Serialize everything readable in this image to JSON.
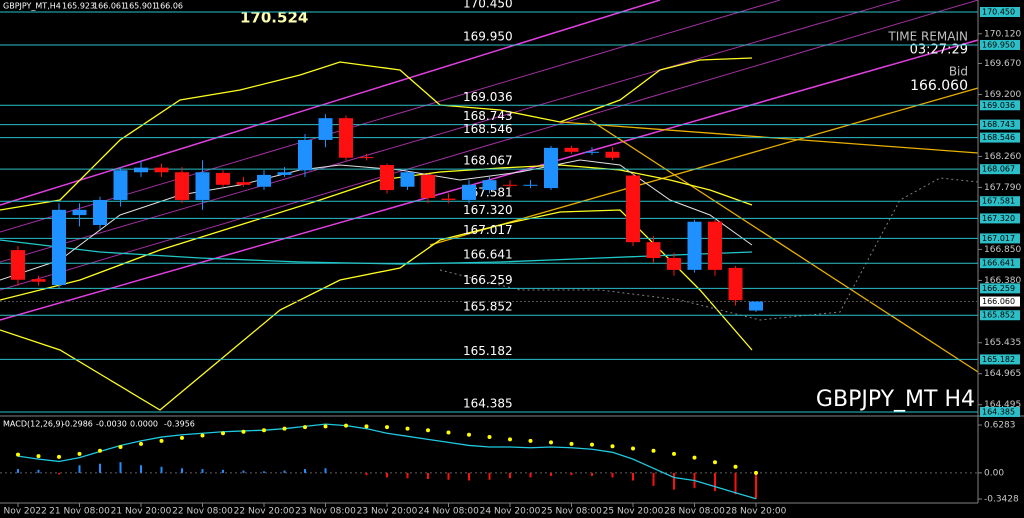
{
  "chart_data": {
    "type": "candlestick",
    "title": "GBPJPY_MT,H4",
    "categories": [
      "18 Nov 2022",
      null,
      null,
      "21 Nov 08:00",
      null,
      null,
      "21 Nov 20:00",
      null,
      null,
      "22 Nov 08:00",
      null,
      null,
      "22 Nov 20:00",
      null,
      null,
      "23 Nov 08:00",
      null,
      null,
      "23 Nov 20:00",
      null,
      null,
      "24 Nov 08:00",
      null,
      null,
      "24 Nov 20:00",
      null,
      null,
      "25 Nov 08:00",
      null,
      null,
      "25 Nov 20:00",
      null,
      null,
      "28 Nov 08:00",
      null,
      null,
      "28 Nov 20:00"
    ],
    "open": [
      166.84,
      166.4,
      166.31,
      167.37,
      167.22,
      167.6,
      168.02,
      168.09,
      168.02,
      167.6,
      168.01,
      167.87,
      167.8,
      167.98,
      168.05,
      168.51,
      168.84,
      168.25,
      168.13,
      167.8,
      167.98,
      167.62,
      167.6,
      167.75,
      167.83,
      167.82,
      167.78,
      168.39,
      168.32,
      168.33,
      167.97,
      166.96,
      166.72,
      166.54,
      167.27,
      166.57,
      165.923
    ],
    "high": [
      166.9,
      166.45,
      167.55,
      167.55,
      167.65,
      168.1,
      168.2,
      168.15,
      168.1,
      168.2,
      168.05,
      167.95,
      168.05,
      168.1,
      168.6,
      168.9,
      168.88,
      168.3,
      168.15,
      168.05,
      168.0,
      167.7,
      167.9,
      167.95,
      167.9,
      167.9,
      168.42,
      168.42,
      168.4,
      168.4,
      168.0,
      167.05,
      166.8,
      167.3,
      167.3,
      166.6,
      166.061
    ],
    "low": [
      166.3,
      166.3,
      166.25,
      167.2,
      167.15,
      167.5,
      167.95,
      167.95,
      167.55,
      167.45,
      167.8,
      167.8,
      167.75,
      167.95,
      167.95,
      168.4,
      168.2,
      168.2,
      167.7,
      167.75,
      167.55,
      167.55,
      167.55,
      167.7,
      167.78,
      167.78,
      167.75,
      168.3,
      168.28,
      168.2,
      166.9,
      166.65,
      166.45,
      166.5,
      166.45,
      166.0,
      165.901
    ],
    "close": [
      166.39,
      166.36,
      167.45,
      167.45,
      167.6,
      168.05,
      168.09,
      168.02,
      167.6,
      168.02,
      167.83,
      167.83,
      167.98,
      168.02,
      168.51,
      168.84,
      168.24,
      168.24,
      167.75,
      168.02,
      167.63,
      167.6,
      167.83,
      167.9,
      167.82,
      167.83,
      168.39,
      168.33,
      168.33,
      168.24,
      166.96,
      166.72,
      166.54,
      167.27,
      166.54,
      166.08,
      166.06
    ],
    "up_color": "#1e90ff",
    "down_color": "#ff1010",
    "ylim": [
      164.324,
      170.632
    ],
    "yticks": [
      {
        "value": 170.12,
        "label": "170.120"
      },
      {
        "value": 169.67,
        "label": "169.670"
      },
      {
        "value": 169.2,
        "label": "169.200"
      },
      {
        "value": 168.26,
        "label": "168.260"
      },
      {
        "value": 167.79,
        "label": "167.790"
      },
      {
        "value": 166.85,
        "label": "166.850"
      },
      {
        "value": 166.38,
        "label": "166.380"
      },
      165.435,
      164.965,
      164.495
    ],
    "levels": [
      {
        "value": 170.45,
        "label": "170.450"
      },
      {
        "value": 169.95,
        "label": "169.950"
      },
      169.036,
      168.743,
      168.546,
      168.067,
      167.581,
      {
        "value": 167.32,
        "label": "167.320"
      },
      167.017,
      166.641,
      166.259,
      165.852,
      165.182,
      164.385
    ],
    "level_color": "#2bbfc8",
    "bid": {
      "value": 166.06,
      "label": "166.060"
    },
    "high_mark": 170.524,
    "time_remain_label": "TIME REMAIN",
    "time_remain": "03:27:29",
    "bid_label": "Bid",
    "watermark": "GBPJPY_MT H4",
    "macd": {
      "label": "MACD(12,26,9)",
      "readout": [
        -0.2986,
        {
          "value": -0.003,
          "label": "-0.0030"
        },
        {
          "value": 0,
          "label": "0.0000"
        },
        -0.3956
      ],
      "ylim": [
        -0.395,
        0.72
      ],
      "yticks": [
        0.6283,
        {
          "value": 0,
          "label": "0.00"
        },
        -0.3428
      ],
      "histogram": [
        0.05,
        0.04,
        -0.02,
        0.1,
        0.12,
        0.14,
        0.1,
        0.08,
        0.06,
        0.05,
        0.04,
        0.03,
        0.02,
        0.03,
        0.05,
        0.06,
        0.0,
        -0.03,
        -0.06,
        -0.07,
        -0.08,
        -0.09,
        -0.1,
        -0.09,
        -0.07,
        -0.06,
        -0.04,
        -0.03,
        -0.04,
        -0.06,
        -0.1,
        -0.17,
        -0.22,
        -0.2,
        -0.24,
        -0.28,
        -0.34
      ],
      "signal": [
        0.24,
        0.22,
        0.21,
        0.25,
        0.29,
        0.34,
        0.38,
        0.42,
        0.46,
        0.49,
        0.52,
        0.54,
        0.56,
        0.58,
        0.6,
        0.61,
        0.62,
        0.61,
        0.6,
        0.58,
        0.56,
        0.53,
        0.5,
        0.47,
        0.44,
        0.42,
        0.4,
        0.38,
        0.37,
        0.35,
        0.32,
        0.29,
        0.25,
        0.2,
        0.14,
        0.08,
        0.0
      ],
      "line": [
        0.22,
        0.18,
        0.15,
        0.2,
        0.28,
        0.36,
        0.42,
        0.47,
        0.5,
        0.52,
        0.54,
        0.55,
        0.56,
        0.58,
        0.61,
        0.64,
        0.62,
        0.58,
        0.52,
        0.48,
        0.44,
        0.4,
        0.36,
        0.34,
        0.34,
        0.33,
        0.34,
        0.33,
        0.31,
        0.27,
        0.18,
        0.06,
        -0.06,
        -0.1,
        -0.18,
        -0.26,
        -0.34
      ],
      "up_color": "#1e90ff",
      "down_color": "#ff1010",
      "signal_color": "#ffff00",
      "line_color": "#20c8e0"
    }
  }
}
